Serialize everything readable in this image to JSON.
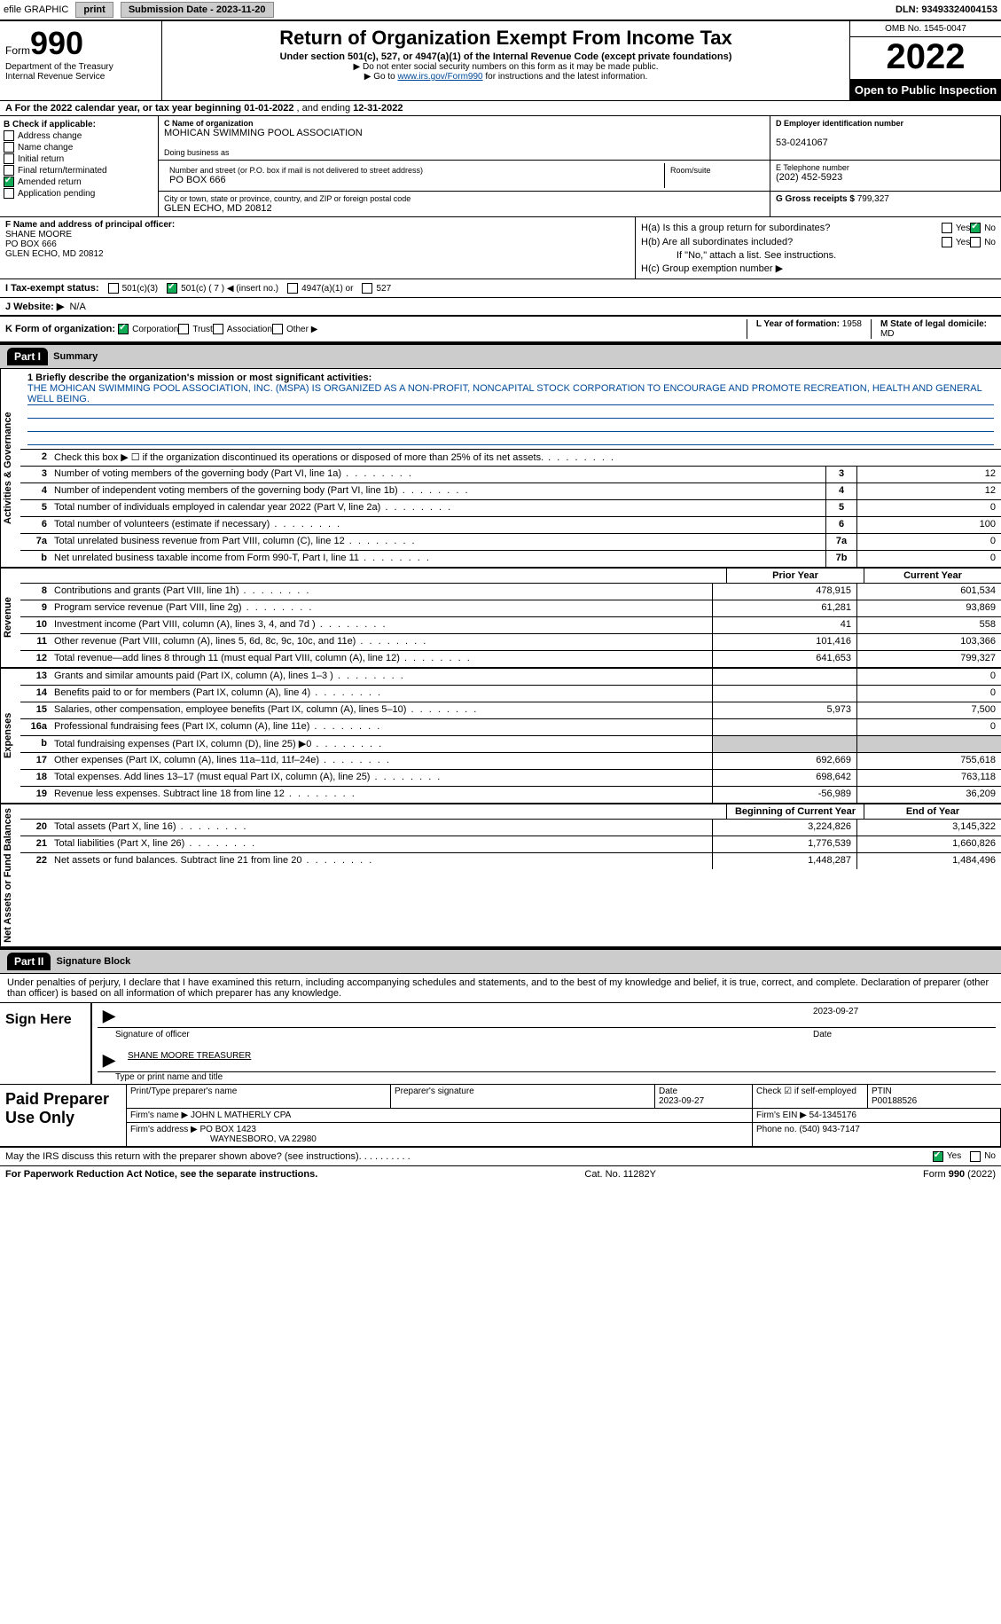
{
  "topbar": {
    "efile": "efile GRAPHIC",
    "print": "print",
    "submission_label": "Submission Date - ",
    "submission_date": "2023-11-20",
    "dln_label": "DLN: ",
    "dln": "93493324004153"
  },
  "header": {
    "form_word": "Form",
    "form_num": "990",
    "dept": "Department of the Treasury",
    "irs": "Internal Revenue Service",
    "title": "Return of Organization Exempt From Income Tax",
    "subtitle": "Under section 501(c), 527, or 4947(a)(1) of the Internal Revenue Code (except private foundations)",
    "note1": "▶ Do not enter social security numbers on this form as it may be made public.",
    "note2_pre": "▶ Go to ",
    "note2_link": "www.irs.gov/Form990",
    "note2_post": " for instructions and the latest information.",
    "omb": "OMB No. 1545-0047",
    "year": "2022",
    "open": "Open to Public Inspection"
  },
  "row_a": {
    "text_pre": "A For the 2022 calendar year, or tax year beginning ",
    "begin": "01-01-2022",
    "mid": "   , and ending ",
    "end": "12-31-2022"
  },
  "col_b": {
    "label": "B Check if applicable:",
    "opts": [
      "Address change",
      "Name change",
      "Initial return",
      "Final return/terminated",
      "Amended return",
      "Application pending"
    ],
    "checked_idx": 4
  },
  "col_c": {
    "name_lbl": "C Name of organization",
    "name": "MOHICAN SWIMMING POOL ASSOCIATION",
    "dba_lbl": "Doing business as",
    "dba": "",
    "addr_lbl": "Number and street (or P.O. box if mail is not delivered to street address)",
    "room_lbl": "Room/suite",
    "addr": "PO BOX 666",
    "city_lbl": "City or town, state or province, country, and ZIP or foreign postal code",
    "city": "GLEN ECHO, MD  20812"
  },
  "col_d": {
    "ein_lbl": "D Employer identification number",
    "ein": "53-0241067",
    "tel_lbl": "E Telephone number",
    "tel": "(202) 452-5923",
    "gross_lbl": "G Gross receipts $ ",
    "gross": "799,327"
  },
  "col_f": {
    "lbl": "F Name and address of principal officer:",
    "name": "SHANE MOORE",
    "addr1": "PO BOX 666",
    "addr2": "GLEN ECHO, MD  20812"
  },
  "col_h": {
    "ha": "H(a)  Is this a group return for subordinates?",
    "hb": "H(b)  Are all subordinates included?",
    "hb_note": "If \"No,\" attach a list. See instructions.",
    "hc": "H(c)  Group exemption number ▶",
    "yes": "Yes",
    "no": "No"
  },
  "status": {
    "lbl": "I   Tax-exempt status:",
    "o1": "501(c)(3)",
    "o2": "501(c) ( 7 ) ◀ (insert no.)",
    "o3": "4947(a)(1) or",
    "o4": "527"
  },
  "website": {
    "lbl": "J   Website: ▶",
    "val": "N/A"
  },
  "korg": {
    "lbl": "K Form of organization:",
    "opts": [
      "Corporation",
      "Trust",
      "Association",
      "Other ▶"
    ],
    "checked_idx": 0,
    "l_lbl": "L Year of formation: ",
    "l_val": "1958",
    "m_lbl": "M State of legal domicile:",
    "m_val": "MD"
  },
  "part1": {
    "num": "Part I",
    "title": "Summary"
  },
  "mission": {
    "lbl": "1   Briefly describe the organization's mission or most significant activities:",
    "text": "THE MOHICAN SWIMMING POOL ASSOCIATION, INC. (MSPA) IS ORGANIZED AS A NON-PROFIT, NONCAPITAL STOCK CORPORATION TO ENCOURAGE AND PROMOTE RECREATION, HEALTH AND GENERAL WELL BEING."
  },
  "gov_rows": [
    {
      "n": "2",
      "d": "Check this box ▶ ☐ if the organization discontinued its operations or disposed of more than 25% of its net assets.",
      "box": "",
      "v": ""
    },
    {
      "n": "3",
      "d": "Number of voting members of the governing body (Part VI, line 1a)",
      "box": "3",
      "v": "12"
    },
    {
      "n": "4",
      "d": "Number of independent voting members of the governing body (Part VI, line 1b)",
      "box": "4",
      "v": "12"
    },
    {
      "n": "5",
      "d": "Total number of individuals employed in calendar year 2022 (Part V, line 2a)",
      "box": "5",
      "v": "0"
    },
    {
      "n": "6",
      "d": "Total number of volunteers (estimate if necessary)",
      "box": "6",
      "v": "100"
    },
    {
      "n": "7a",
      "d": "Total unrelated business revenue from Part VIII, column (C), line 12",
      "box": "7a",
      "v": "0"
    },
    {
      "n": "b",
      "d": "Net unrelated business taxable income from Form 990-T, Part I, line 11",
      "box": "7b",
      "v": "0"
    }
  ],
  "cols_hdr": {
    "prior": "Prior Year",
    "current": "Current Year"
  },
  "rev_rows": [
    {
      "n": "8",
      "d": "Contributions and grants (Part VIII, line 1h)",
      "p": "478,915",
      "c": "601,534"
    },
    {
      "n": "9",
      "d": "Program service revenue (Part VIII, line 2g)",
      "p": "61,281",
      "c": "93,869"
    },
    {
      "n": "10",
      "d": "Investment income (Part VIII, column (A), lines 3, 4, and 7d )",
      "p": "41",
      "c": "558"
    },
    {
      "n": "11",
      "d": "Other revenue (Part VIII, column (A), lines 5, 6d, 8c, 9c, 10c, and 11e)",
      "p": "101,416",
      "c": "103,366"
    },
    {
      "n": "12",
      "d": "Total revenue—add lines 8 through 11 (must equal Part VIII, column (A), line 12)",
      "p": "641,653",
      "c": "799,327"
    }
  ],
  "exp_rows": [
    {
      "n": "13",
      "d": "Grants and similar amounts paid (Part IX, column (A), lines 1–3 )",
      "p": "",
      "c": "0"
    },
    {
      "n": "14",
      "d": "Benefits paid to or for members (Part IX, column (A), line 4)",
      "p": "",
      "c": "0"
    },
    {
      "n": "15",
      "d": "Salaries, other compensation, employee benefits (Part IX, column (A), lines 5–10)",
      "p": "5,973",
      "c": "7,500"
    },
    {
      "n": "16a",
      "d": "Professional fundraising fees (Part IX, column (A), line 11e)",
      "p": "",
      "c": "0"
    },
    {
      "n": "b",
      "d": "Total fundraising expenses (Part IX, column (D), line 25) ▶0",
      "p": "shade",
      "c": "shade"
    },
    {
      "n": "17",
      "d": "Other expenses (Part IX, column (A), lines 11a–11d, 11f–24e)",
      "p": "692,669",
      "c": "755,618"
    },
    {
      "n": "18",
      "d": "Total expenses. Add lines 13–17 (must equal Part IX, column (A), line 25)",
      "p": "698,642",
      "c": "763,118"
    },
    {
      "n": "19",
      "d": "Revenue less expenses. Subtract line 18 from line 12",
      "p": "-56,989",
      "c": "36,209"
    }
  ],
  "na_hdr": {
    "begin": "Beginning of Current Year",
    "end": "End of Year"
  },
  "na_rows": [
    {
      "n": "20",
      "d": "Total assets (Part X, line 16)",
      "p": "3,224,826",
      "c": "3,145,322"
    },
    {
      "n": "21",
      "d": "Total liabilities (Part X, line 26)",
      "p": "1,776,539",
      "c": "1,660,826"
    },
    {
      "n": "22",
      "d": "Net assets or fund balances. Subtract line 21 from line 20",
      "p": "1,448,287",
      "c": "1,484,496"
    }
  ],
  "part2": {
    "num": "Part II",
    "title": "Signature Block"
  },
  "sig_intro": "Under penalties of perjury, I declare that I have examined this return, including accompanying schedules and statements, and to the best of my knowledge and belief, it is true, correct, and complete. Declaration of preparer (other than officer) is based on all information of which preparer has any knowledge.",
  "sign": {
    "lbl": "Sign Here",
    "sig_of": "Signature of officer",
    "date": "2023-09-27",
    "date_lbl": "Date",
    "name": "SHANE MOORE  TREASURER",
    "name_lbl": "Type or print name and title"
  },
  "paid": {
    "lbl": "Paid Preparer Use Only",
    "h1": "Print/Type preparer's name",
    "h2": "Preparer's signature",
    "h3_lbl": "Date",
    "h3": "2023-09-27",
    "h4_lbl": "Check ☑ if self-employed",
    "h5_lbl": "PTIN",
    "h5": "P00188526",
    "firm_lbl": "Firm's name    ▶ ",
    "firm": "JOHN L MATHERLY CPA",
    "ein_lbl": "Firm's EIN ▶ ",
    "ein": "54-1345176",
    "addr_lbl": "Firm's address ▶ ",
    "addr1": "PO BOX 1423",
    "addr2": "WAYNESBORO, VA  22980",
    "phone_lbl": "Phone no. ",
    "phone": "(540) 943-7147"
  },
  "footer": {
    "q": "May the IRS discuss this return with the preparer shown above? (see instructions)",
    "yes": "Yes",
    "no": "No"
  },
  "last": {
    "left": "For Paperwork Reduction Act Notice, see the separate instructions.",
    "mid": "Cat. No. 11282Y",
    "right": "Form 990 (2022)"
  },
  "vert": {
    "gov": "Activities & Governance",
    "rev": "Revenue",
    "exp": "Expenses",
    "na": "Net Assets or Fund Balances"
  }
}
